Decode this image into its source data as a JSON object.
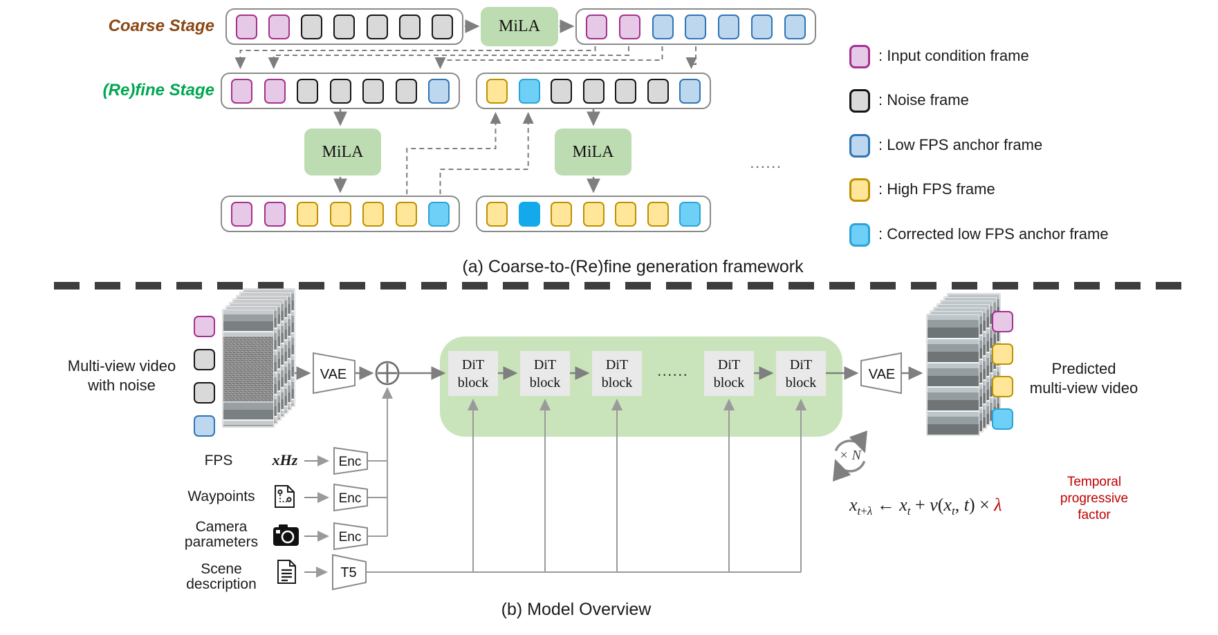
{
  "colors": {
    "input": {
      "fill": "#e6c9e6",
      "border": "#a5308f"
    },
    "noise": {
      "fill": "#d9d9d9",
      "border": "#141414"
    },
    "anchor": {
      "fill": "#bdd7ee",
      "border": "#2e75b6"
    },
    "high": {
      "fill": "#ffe699",
      "border": "#bf9000"
    },
    "corrected": {
      "fill": "#6ed0f7",
      "border": "#2ba3d9"
    },
    "corrected_solid": {
      "fill": "#14a9ea",
      "border": "#14a9ea"
    },
    "mila_green": "#bedcb2",
    "dit_container_green": "#c9e3bb",
    "dit_block_gray": "#e9e9e9",
    "coarse_label_brown": "#8a4613",
    "refine_label_green": "#00a651",
    "temporal_red": "#c00000"
  },
  "section_a": {
    "coarse_stage_label": "Coarse Stage",
    "refine_stage_label": "(Re)fine Stage",
    "mila_label": "MiLA",
    "rows": {
      "coarse_in": [
        "input",
        "input",
        "noise",
        "noise",
        "noise",
        "noise",
        "noise"
      ],
      "coarse_out": [
        "input",
        "input",
        "anchor",
        "anchor",
        "anchor",
        "anchor",
        "anchor"
      ],
      "refine_in_1": [
        "input",
        "input",
        "noise",
        "noise",
        "noise",
        "noise",
        "anchor"
      ],
      "refine_in_2": [
        "high",
        "corrected",
        "noise",
        "noise",
        "noise",
        "noise",
        "anchor"
      ],
      "refine_out_1": [
        "input",
        "input",
        "high",
        "high",
        "high",
        "high",
        "corrected"
      ],
      "refine_out_2": [
        "high",
        "corrected_solid",
        "high",
        "high",
        "high",
        "high",
        "corrected"
      ]
    },
    "ellipsis": "......",
    "legend": [
      {
        "swatch": "input",
        "label": ": Input condition frame"
      },
      {
        "swatch": "noise",
        "label": ": Noise frame"
      },
      {
        "swatch": "anchor",
        "label": ": Low FPS anchor frame"
      },
      {
        "swatch": "high",
        "label": ": High FPS frame"
      },
      {
        "swatch": "corrected",
        "label": ": Corrected low FPS anchor frame"
      }
    ],
    "caption": "(a) Coarse-to-(Re)fine generation framework"
  },
  "section_b": {
    "input_video_label": [
      "Multi-view video",
      "with noise"
    ],
    "input_frame_column": [
      "input",
      "noise",
      "noise",
      "anchor"
    ],
    "output_frame_column": [
      "input",
      "high",
      "high",
      "corrected"
    ],
    "conditions": [
      {
        "label": "FPS",
        "value": "xHz",
        "encoder": "Enc"
      },
      {
        "label": "Waypoints",
        "encoder": "Enc",
        "icon": "waypoints-document-icon"
      },
      {
        "label": "Camera parameters",
        "encoder": "Enc",
        "icon": "camera-icon"
      },
      {
        "label": "Scene description",
        "encoder": "T5",
        "icon": "document-text-icon"
      }
    ],
    "vae_label": "VAE",
    "dit_block_label": "DiT block",
    "dit_ellipsis": "......",
    "loop_label": "× N",
    "formula_html": "<i>x</i><sub><i>t</i>+<i>λ</i></sub> ← <i>x</i><sub><i>t</i></sub> + <i>v</i>(<i>x</i><sub><i>t</i></sub>, <i>t</i>) × <span class=\"red\"><i>λ</i></span>",
    "temporal_note": "Temporal progressive factor",
    "predicted_label": [
      "Predicted",
      "multi-view video"
    ],
    "caption": "(b) Model Overview"
  }
}
